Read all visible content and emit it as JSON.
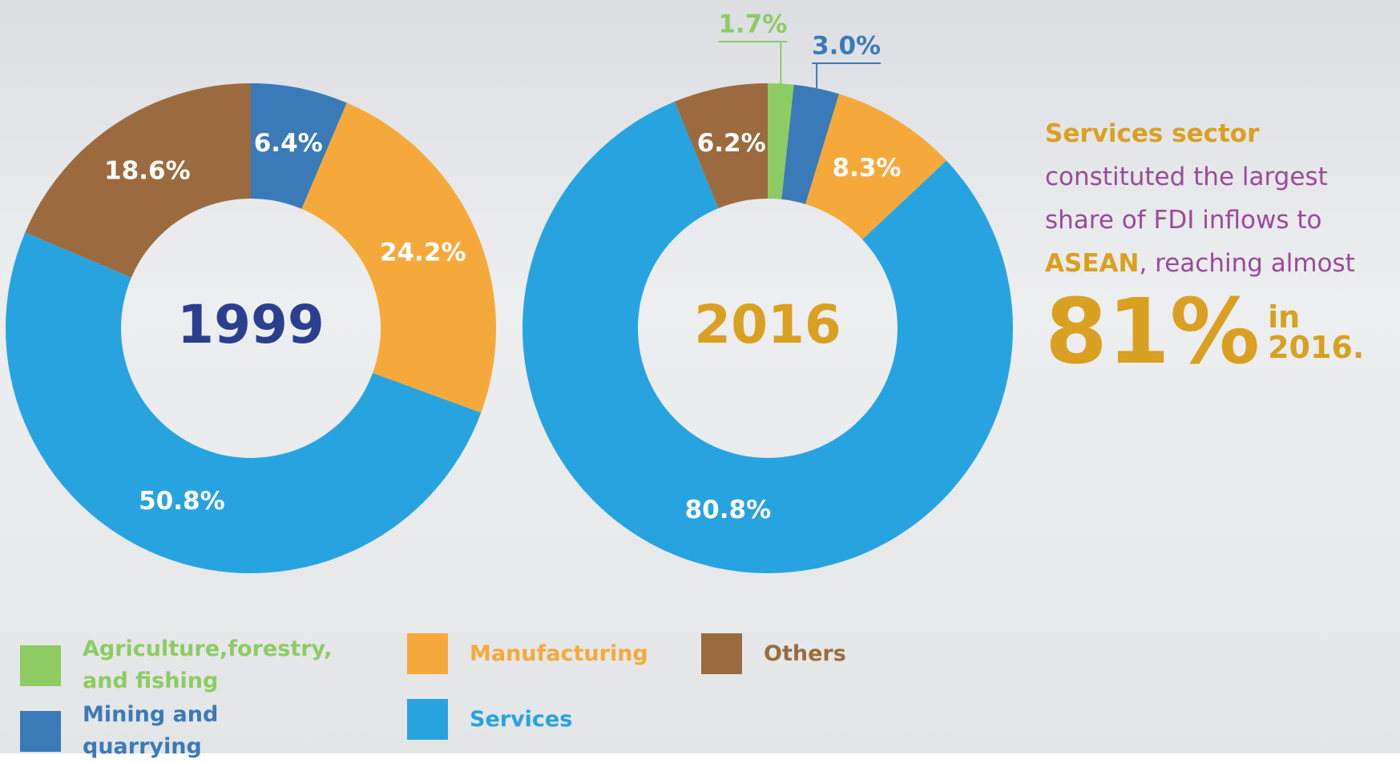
{
  "chart_data": [
    {
      "type": "donut",
      "title": "1999",
      "title_color": "#2b3f8f",
      "categories": [
        "Mining and quarrying",
        "Manufacturing",
        "Services",
        "Others"
      ],
      "values": [
        6.4,
        24.2,
        50.8,
        18.6
      ],
      "value_labels": [
        "6.4%",
        "24.2%",
        "50.8%",
        "18.6%"
      ],
      "colors": [
        "#3b7ab8",
        "#f6a93b",
        "#27a4df",
        "#9b6b3f"
      ]
    },
    {
      "type": "donut",
      "title": "2016",
      "title_color": "#d9a021",
      "categories": [
        "Agriculture,forestry, and fishing",
        "Mining and quarrying",
        "Manufacturing",
        "Services",
        "Others"
      ],
      "values": [
        1.7,
        3.0,
        8.3,
        80.8,
        6.2
      ],
      "value_labels": [
        "1.7%",
        "3.0%",
        "8.3%",
        "80.8%",
        "6.2%"
      ],
      "colors": [
        "#8ccc62",
        "#3b7ab8",
        "#f6a93b",
        "#27a4df",
        "#9b6b3f"
      ]
    }
  ],
  "legend": [
    {
      "name": "Agriculture,forestry, and fishing",
      "color": "#8ccc62"
    },
    {
      "name": "Mining and quarrying",
      "color": "#3b7ab8"
    },
    {
      "name": "Manufacturing",
      "color": "#f6a93b"
    },
    {
      "name": "Services",
      "color": "#27a4df"
    },
    {
      "name": "Others",
      "color": "#9b6b3f"
    }
  ],
  "annotation": {
    "lead": "Services sector",
    "text": "constituted the largest share of FDI inflows to",
    "region": "ASEAN",
    "tail": ", reaching almost",
    "highlight": "81%",
    "in": "in",
    "year": "2016."
  }
}
